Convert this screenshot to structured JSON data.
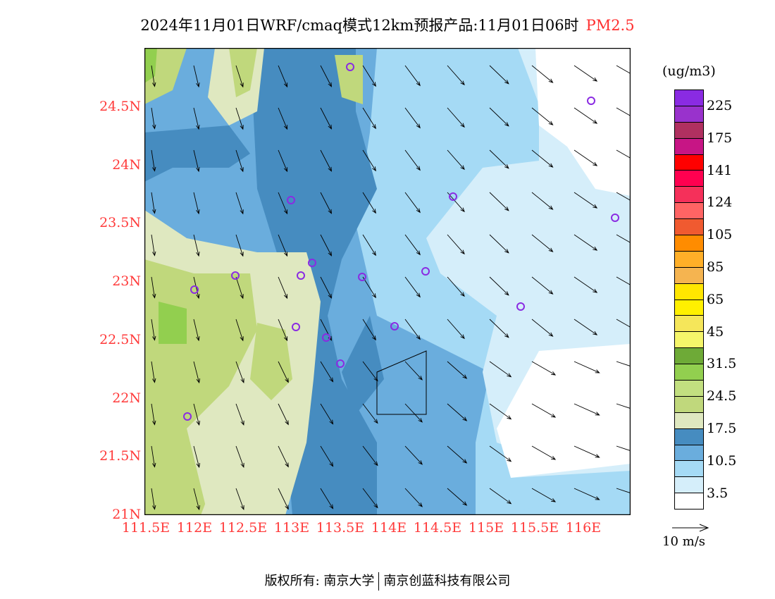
{
  "title": {
    "main": "2024年11月01日WRF/cmaq模式12km预报产品:11月01日06时",
    "species": "PM2.5"
  },
  "lat_labels": [
    "24.5N",
    "24N",
    "23.5N",
    "23N",
    "22.5N",
    "22N",
    "21.5N",
    "21N"
  ],
  "lon_labels": [
    "111.5E",
    "112E",
    "112.5E",
    "113E",
    "113.5E",
    "114E",
    "114.5E",
    "115E",
    "115.5E",
    "116E"
  ],
  "colorbar": {
    "unit": "(ug/m3)",
    "colors": [
      "#8a2be2",
      "#9932cc",
      "#b03060",
      "#c71585",
      "#ff0000",
      "#ff0050",
      "#f5305a",
      "#ff6464",
      "#f05a30",
      "#ff8c00",
      "#ffaf28",
      "#f5b450",
      "#ffe600",
      "#fff000",
      "#f5e65a",
      "#f5f56a",
      "#6eaa37",
      "#92cf4f",
      "#c2df80",
      "#c0d87c",
      "#dfe8c0",
      "#468cc0",
      "#6aaddd",
      "#a5daf5",
      "#d5eefa",
      "#ffffff"
    ],
    "labels": [
      "225",
      "175",
      "141",
      "124",
      "105",
      "85",
      "65",
      "45",
      "31.5",
      "24.5",
      "17.5",
      "10.5",
      "3.5"
    ]
  },
  "wind_reference": "10 m/s",
  "footer": {
    "left": "版权所有: 南京大学",
    "right": "南京创蓝科技有限公司"
  }
}
